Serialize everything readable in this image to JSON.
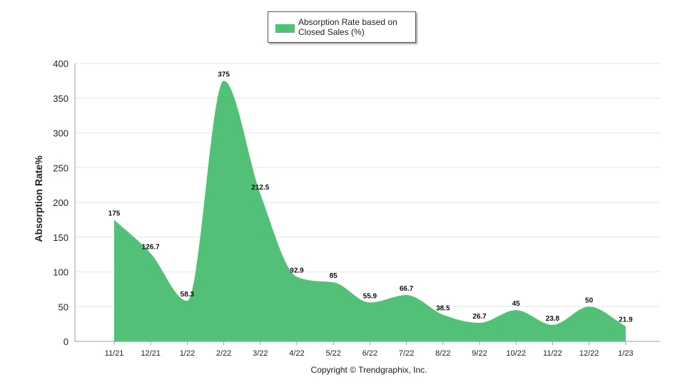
{
  "legend": {
    "label": "Absorption Rate based on Closed Sales (%)"
  },
  "colors": {
    "area": "#53c078",
    "grid": "#e6e6e6",
    "axis": "#999999"
  },
  "copyright": "Copyright © Trendgraphix, Inc.",
  "chart_data": {
    "type": "area",
    "title": "",
    "xlabel": "",
    "ylabel": "Absorption Rate%",
    "ylim": [
      0,
      400
    ],
    "yticks": [
      0,
      50,
      100,
      150,
      200,
      250,
      300,
      350,
      400
    ],
    "grid": true,
    "legend_position": "top-center",
    "categories": [
      "11/21",
      "12/21",
      "1/22",
      "2/22",
      "3/22",
      "4/22",
      "5/22",
      "6/22",
      "7/22",
      "8/22",
      "9/22",
      "10/22",
      "11/22",
      "12/22",
      "1/23"
    ],
    "series": [
      {
        "name": "Absorption Rate based on Closed Sales (%)",
        "values": [
          175,
          126.7,
          58.3,
          375,
          212.5,
          92.9,
          85,
          55.9,
          66.7,
          38.5,
          26.7,
          45,
          23.8,
          50,
          21.9
        ]
      }
    ]
  }
}
